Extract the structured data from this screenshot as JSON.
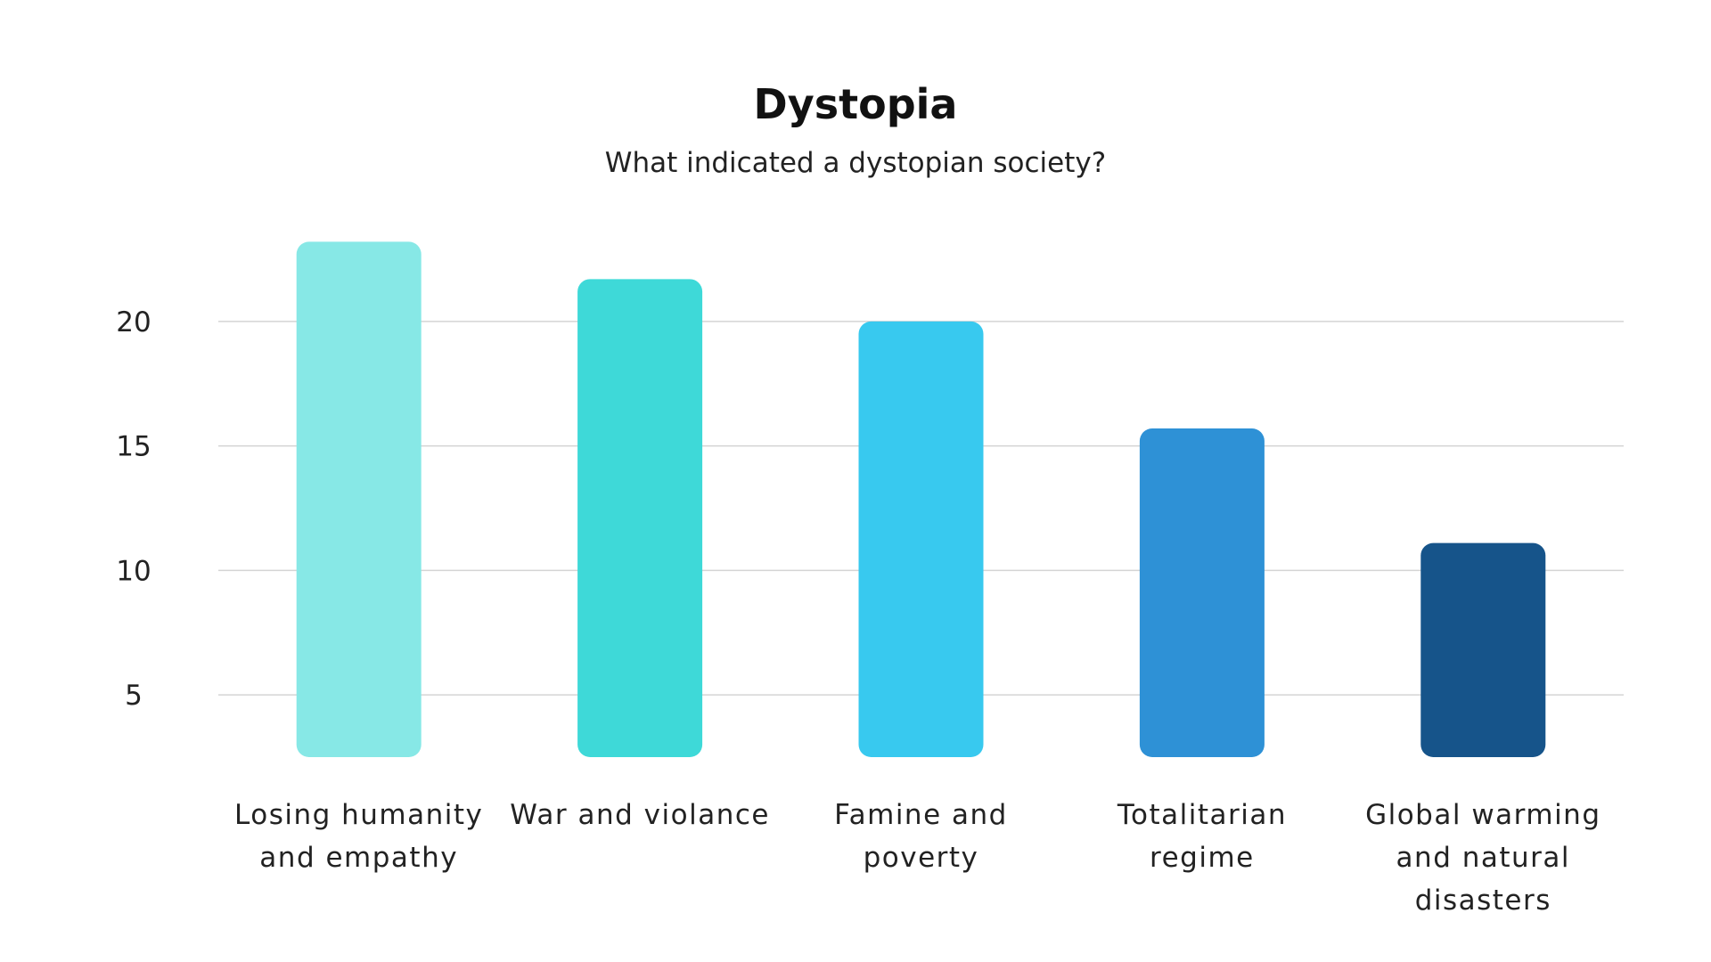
{
  "chart_data": {
    "type": "bar",
    "title": "Dystopia",
    "subtitle": "What indicated a dystopian society?",
    "xlabel": "",
    "ylabel": "",
    "categories": [
      [
        "Losing humanity",
        "and empathy"
      ],
      [
        "War and violance"
      ],
      [
        "Famine and",
        "poverty"
      ],
      [
        "Totalitarian",
        "regime"
      ],
      [
        "Global warming",
        "and natural",
        "disasters"
      ]
    ],
    "values": [
      23.2,
      21.7,
      20.0,
      15.7,
      11.1
    ],
    "colors": [
      "#87E8E6",
      "#3ED9D8",
      "#38C9EF",
      "#2E91D6",
      "#16548A"
    ],
    "yticks": [
      5,
      10,
      15,
      20
    ],
    "ylim": [
      2.5,
      23.2
    ],
    "grid": true,
    "legend": "none"
  }
}
